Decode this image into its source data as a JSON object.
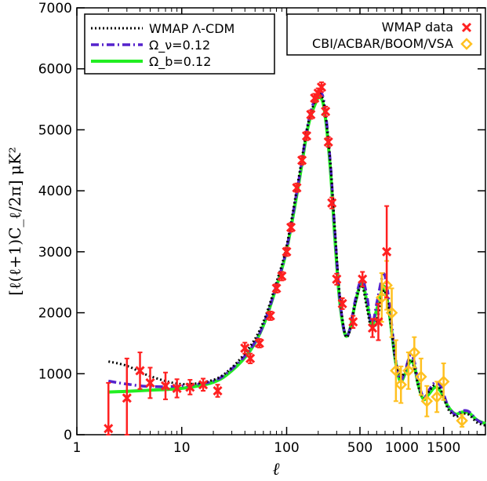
{
  "chart_data": {
    "type": "line",
    "title": "",
    "xlabel": "ℓ",
    "ylabel": "[ℓ(ℓ+1)C_ℓ/2π]  μK²",
    "xlim": [
      1,
      2000
    ],
    "ylim": [
      0,
      7000
    ],
    "x_scale": "log below 500, linear from 500",
    "xticks": [
      1,
      10,
      100,
      500,
      1000,
      1500
    ],
    "xtick_labels": [
      "1",
      "10",
      "100",
      "500",
      "1000",
      "1500"
    ],
    "yticks": [
      0,
      1000,
      2000,
      3000,
      4000,
      5000,
      6000,
      7000
    ],
    "ytick_labels": [
      "0",
      "1000",
      "2000",
      "3000",
      "4000",
      "5000",
      "6000",
      "7000"
    ],
    "grid": false,
    "legends": [
      {
        "placement": "top-left",
        "entries": [
          {
            "label": "WMAP Λ-CDM",
            "series": "lcdm"
          },
          {
            "label": "Ω_ν=0.12",
            "series": "nu"
          },
          {
            "label": "Ω_b=0.12",
            "series": "b"
          }
        ]
      },
      {
        "placement": "top-right",
        "entries": [
          {
            "label": "WMAP data",
            "series": "wmap"
          },
          {
            "label": "CBI/ACBAR/BOOM/VSA",
            "series": "ext"
          }
        ]
      }
    ],
    "series": [
      {
        "key": "lcdm",
        "name": "WMAP Λ-CDM",
        "color": "#000000",
        "style": "dotted",
        "points": [
          [
            2,
            1200
          ],
          [
            3,
            1130
          ],
          [
            5,
            960
          ],
          [
            10,
            830
          ],
          [
            20,
            900
          ],
          [
            30,
            1100
          ],
          [
            45,
            1450
          ],
          [
            60,
            1850
          ],
          [
            80,
            2500
          ],
          [
            100,
            3100
          ],
          [
            130,
            4200
          ],
          [
            160,
            5100
          ],
          [
            190,
            5500
          ],
          [
            210,
            5580
          ],
          [
            230,
            5350
          ],
          [
            260,
            4500
          ],
          [
            290,
            3300
          ],
          [
            320,
            2300
          ],
          [
            360,
            1650
          ],
          [
            400,
            1700
          ],
          [
            450,
            2150
          ],
          [
            520,
            2450
          ],
          [
            580,
            2100
          ],
          [
            640,
            1720
          ],
          [
            700,
            1850
          ],
          [
            760,
            2250
          ],
          [
            800,
            2350
          ],
          [
            860,
            1900
          ],
          [
            920,
            1250
          ],
          [
            980,
            950
          ],
          [
            1040,
            1050
          ],
          [
            1100,
            1230
          ],
          [
            1150,
            1100
          ],
          [
            1200,
            780
          ],
          [
            1260,
            600
          ],
          [
            1320,
            700
          ],
          [
            1400,
            820
          ],
          [
            1470,
            720
          ],
          [
            1550,
            430
          ],
          [
            1640,
            300
          ],
          [
            1720,
            340
          ],
          [
            1800,
            330
          ],
          [
            1900,
            200
          ],
          [
            2000,
            150
          ]
        ]
      },
      {
        "key": "nu",
        "name": "Ω_ν=0.12",
        "color": "#5522cc",
        "style": "dash-dot",
        "points": [
          [
            2,
            880
          ],
          [
            3,
            830
          ],
          [
            5,
            790
          ],
          [
            10,
            800
          ],
          [
            20,
            880
          ],
          [
            30,
            1080
          ],
          [
            45,
            1400
          ],
          [
            60,
            1800
          ],
          [
            80,
            2450
          ],
          [
            100,
            3050
          ],
          [
            130,
            4150
          ],
          [
            160,
            5100
          ],
          [
            190,
            5550
          ],
          [
            210,
            5620
          ],
          [
            230,
            5400
          ],
          [
            260,
            4500
          ],
          [
            290,
            3250
          ],
          [
            320,
            2250
          ],
          [
            360,
            1650
          ],
          [
            400,
            1720
          ],
          [
            450,
            2200
          ],
          [
            520,
            2550
          ],
          [
            580,
            2300
          ],
          [
            640,
            1800
          ],
          [
            700,
            2150
          ],
          [
            760,
            2550
          ],
          [
            800,
            2600
          ],
          [
            860,
            2050
          ],
          [
            920,
            1300
          ],
          [
            980,
            900
          ],
          [
            1040,
            1050
          ],
          [
            1100,
            1300
          ],
          [
            1150,
            1200
          ],
          [
            1200,
            850
          ],
          [
            1260,
            620
          ],
          [
            1320,
            720
          ],
          [
            1400,
            860
          ],
          [
            1470,
            780
          ],
          [
            1550,
            480
          ],
          [
            1640,
            330
          ],
          [
            1720,
            390
          ],
          [
            1800,
            380
          ],
          [
            1900,
            240
          ],
          [
            2000,
            170
          ]
        ]
      },
      {
        "key": "b",
        "name": "Ω_b=0.12",
        "color": "#22ee22",
        "style": "solid",
        "points": [
          [
            2,
            700
          ],
          [
            3,
            710
          ],
          [
            5,
            730
          ],
          [
            10,
            760
          ],
          [
            20,
            860
          ],
          [
            30,
            1050
          ],
          [
            45,
            1380
          ],
          [
            60,
            1790
          ],
          [
            80,
            2430
          ],
          [
            100,
            3030
          ],
          [
            130,
            4100
          ],
          [
            160,
            5050
          ],
          [
            190,
            5450
          ],
          [
            210,
            5530
          ],
          [
            230,
            5300
          ],
          [
            260,
            4400
          ],
          [
            290,
            3150
          ],
          [
            320,
            2200
          ],
          [
            360,
            1650
          ],
          [
            400,
            1720
          ],
          [
            450,
            2150
          ],
          [
            520,
            2500
          ],
          [
            580,
            2200
          ],
          [
            640,
            1800
          ],
          [
            700,
            2050
          ],
          [
            760,
            2350
          ],
          [
            800,
            2400
          ],
          [
            860,
            1900
          ],
          [
            920,
            1250
          ],
          [
            980,
            880
          ],
          [
            1040,
            1000
          ],
          [
            1100,
            1200
          ],
          [
            1150,
            1130
          ],
          [
            1200,
            800
          ],
          [
            1260,
            580
          ],
          [
            1320,
            660
          ],
          [
            1400,
            780
          ],
          [
            1470,
            700
          ],
          [
            1550,
            470
          ],
          [
            1640,
            340
          ],
          [
            1720,
            370
          ],
          [
            1800,
            360
          ],
          [
            1900,
            240
          ],
          [
            2000,
            180
          ]
        ]
      },
      {
        "key": "wmap",
        "name": "WMAP data",
        "color": "#ff2020",
        "marker": "x",
        "points": [
          {
            "x": 2,
            "y": 100,
            "err": 750
          },
          {
            "x": 3,
            "y": 600,
            "err": 650
          },
          {
            "x": 4,
            "y": 1050,
            "err": 300
          },
          {
            "x": 5,
            "y": 850,
            "err": 250
          },
          {
            "x": 7,
            "y": 800,
            "err": 220
          },
          {
            "x": 9,
            "y": 760,
            "err": 150
          },
          {
            "x": 12,
            "y": 780,
            "err": 120
          },
          {
            "x": 16,
            "y": 820,
            "err": 100
          },
          {
            "x": 22,
            "y": 720,
            "err": 100
          },
          {
            "x": 40,
            "y": 1420,
            "err": 90
          },
          {
            "x": 45,
            "y": 1250,
            "err": 80
          },
          {
            "x": 55,
            "y": 1500,
            "err": 70
          },
          {
            "x": 70,
            "y": 1950,
            "err": 70
          },
          {
            "x": 80,
            "y": 2400,
            "err": 70
          },
          {
            "x": 90,
            "y": 2600,
            "err": 70
          },
          {
            "x": 100,
            "y": 3000,
            "err": 70
          },
          {
            "x": 110,
            "y": 3400,
            "err": 70
          },
          {
            "x": 125,
            "y": 4050,
            "err": 70
          },
          {
            "x": 140,
            "y": 4500,
            "err": 70
          },
          {
            "x": 155,
            "y": 4900,
            "err": 70
          },
          {
            "x": 170,
            "y": 5250,
            "err": 70
          },
          {
            "x": 185,
            "y": 5520,
            "err": 70
          },
          {
            "x": 200,
            "y": 5600,
            "err": 80
          },
          {
            "x": 215,
            "y": 5700,
            "err": 80
          },
          {
            "x": 235,
            "y": 5300,
            "err": 80
          },
          {
            "x": 250,
            "y": 4800,
            "err": 80
          },
          {
            "x": 270,
            "y": 3800,
            "err": 90
          },
          {
            "x": 300,
            "y": 2550,
            "err": 90
          },
          {
            "x": 340,
            "y": 2150,
            "err": 90
          },
          {
            "x": 430,
            "y": 1850,
            "err": 100
          },
          {
            "x": 530,
            "y": 2550,
            "err": 120
          },
          {
            "x": 650,
            "y": 1750,
            "err": 150
          },
          {
            "x": 720,
            "y": 1850,
            "err": 300
          },
          {
            "x": 820,
            "y": 3000,
            "err": 750
          }
        ]
      },
      {
        "key": "ext",
        "name": "CBI/ACBAR/BOOM/VSA",
        "color": "#ffc020",
        "marker": "diamond",
        "points": [
          {
            "x": 760,
            "y": 2250,
            "err": 400
          },
          {
            "x": 820,
            "y": 2450,
            "err": 400
          },
          {
            "x": 880,
            "y": 2000,
            "err": 400
          },
          {
            "x": 930,
            "y": 1050,
            "err": 500
          },
          {
            "x": 990,
            "y": 820,
            "err": 300
          },
          {
            "x": 1080,
            "y": 1050,
            "err": 300
          },
          {
            "x": 1150,
            "y": 1350,
            "err": 250
          },
          {
            "x": 1230,
            "y": 950,
            "err": 300
          },
          {
            "x": 1300,
            "y": 550,
            "err": 250
          },
          {
            "x": 1420,
            "y": 620,
            "err": 250
          },
          {
            "x": 1500,
            "y": 870,
            "err": 300
          },
          {
            "x": 1720,
            "y": 230,
            "err": 100
          }
        ]
      }
    ]
  }
}
